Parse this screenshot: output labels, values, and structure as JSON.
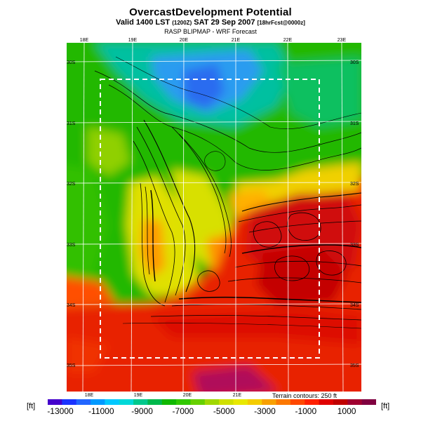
{
  "header": {
    "title": "OvercastDevelopment Potential",
    "valid_main": "Valid 1400 LST",
    "valid_utc": "(1200Z)",
    "valid_date": "SAT 29 Sep 2007",
    "valid_fcst": "[18hrFcst@0000z]",
    "model": "RASP BLIPMAP - WRF Forecast"
  },
  "map": {
    "lon_top_labels": [
      "18E",
      "19E",
      "20E",
      "21E",
      "22E",
      "23E"
    ],
    "lon_bottom_labels": [
      "18E",
      "19E",
      "20E",
      "21E"
    ],
    "lat_left_labels": [
      "30S",
      "31S",
      "32S",
      "33S",
      "34S",
      "35S"
    ],
    "lat_right_labels": [
      "30S",
      "31S",
      "32S",
      "33S",
      "34S",
      "35S"
    ],
    "terrain_note": "Terrain contours: 250 ft",
    "colors": {
      "deep_red": "#cc0000",
      "red": "#ee2200",
      "orange": "#ff7700",
      "yellow": "#e8e000",
      "green": "#22c000",
      "teal": "#00c8a0",
      "blue": "#2a7cf0",
      "contour": "#000000",
      "grid": "#ffffff"
    }
  },
  "colorbar": {
    "unit_left": "[ft]",
    "unit_right": "[ft]",
    "tick_labels": [
      "-13000",
      "-11000",
      "-9000",
      "-7000",
      "-5000",
      "-3000",
      "-1000",
      "1000"
    ],
    "colors": [
      "#4400cc",
      "#1a33ff",
      "#2266ff",
      "#0099ff",
      "#00c8ff",
      "#00d8d8",
      "#00c88c",
      "#00b84c",
      "#10b800",
      "#30c800",
      "#66d000",
      "#a0d800",
      "#d0e000",
      "#e8e800",
      "#f4cc00",
      "#f8a000",
      "#fc7800",
      "#ff4800",
      "#ff2000",
      "#e00000",
      "#c00000",
      "#a00030",
      "#800040"
    ]
  }
}
